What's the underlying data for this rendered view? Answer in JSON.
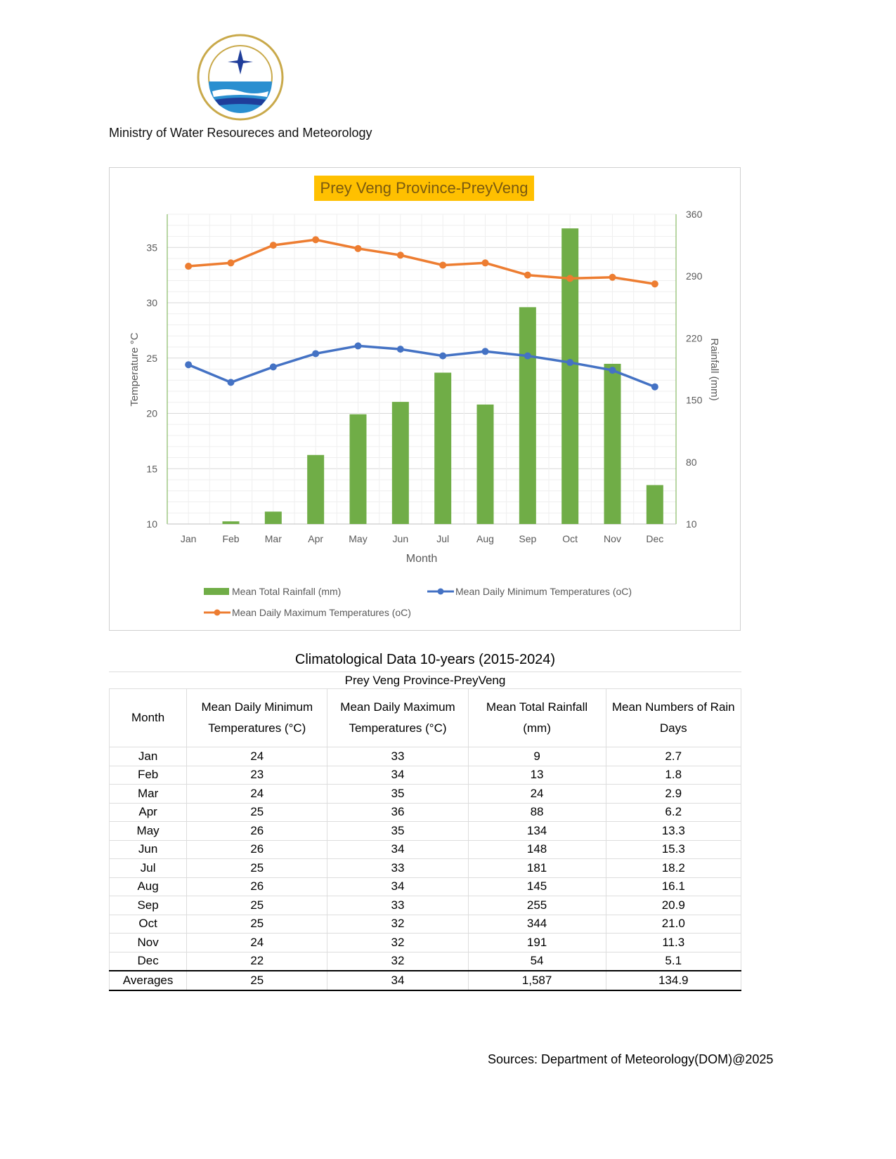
{
  "header": {
    "org": "Ministry of Water Resoureces and Meteorology"
  },
  "chart_data": {
    "type": "bar+line",
    "title": "Prey Veng Province-PreyVeng",
    "categories": [
      "Jan",
      "Feb",
      "Mar",
      "Apr",
      "May",
      "Jun",
      "Jul",
      "Aug",
      "Sep",
      "Oct",
      "Nov",
      "Dec"
    ],
    "xlabel": "Month",
    "ylabel": "Temperature °C",
    "y2label": "Rainfall (mm)",
    "ylim": [
      10,
      38
    ],
    "y2lim": [
      10,
      360
    ],
    "yticks": [
      "10",
      "15",
      "20",
      "25",
      "30",
      "35"
    ],
    "y2ticks": [
      "10",
      "80",
      "150",
      "220",
      "290",
      "360"
    ],
    "series": [
      {
        "name": "Mean Total Rainfall (mm)",
        "type": "bar",
        "axis": "right",
        "color": "#70ad47",
        "values": [
          9,
          13,
          24,
          88,
          134,
          148,
          181,
          145,
          255,
          344,
          191,
          54
        ]
      },
      {
        "name": "Mean Daily Minimum Temperatures (oC)",
        "type": "line",
        "axis": "left",
        "color": "#4472c4",
        "values": [
          24.4,
          22.8,
          24.2,
          25.4,
          26.1,
          25.8,
          25.2,
          25.6,
          25.2,
          24.6,
          23.9,
          22.4
        ]
      },
      {
        "name": "Mean Daily Maximum Temperatures (oC)",
        "type": "line",
        "axis": "left",
        "color": "#ed7d31",
        "values": [
          33.3,
          33.6,
          35.2,
          35.7,
          34.9,
          34.3,
          33.4,
          33.6,
          32.5,
          32.2,
          32.3,
          31.7
        ]
      }
    ],
    "legend": "bottom"
  },
  "table": {
    "title": "Climatological Data  10-years (2015-2024)",
    "subtitle": "Prey Veng Province-PreyVeng",
    "headers": [
      "Month",
      "Mean Daily Minimum Temperatures (°C)",
      "Mean Daily Maximum Temperatures (°C)",
      "Mean Total Rainfall (mm)",
      "Mean Numbers of Rain Days"
    ],
    "rows": [
      [
        "Jan",
        "24",
        "33",
        "9",
        "2.7"
      ],
      [
        "Feb",
        "23",
        "34",
        "13",
        "1.8"
      ],
      [
        "Mar",
        "24",
        "35",
        "24",
        "2.9"
      ],
      [
        "Apr",
        "25",
        "36",
        "88",
        "6.2"
      ],
      [
        "May",
        "26",
        "35",
        "134",
        "13.3"
      ],
      [
        "Jun",
        "26",
        "34",
        "148",
        "15.3"
      ],
      [
        "Jul",
        "25",
        "33",
        "181",
        "18.2"
      ],
      [
        "Aug",
        "26",
        "34",
        "145",
        "16.1"
      ],
      [
        "Sep",
        "25",
        "33",
        "255",
        "20.9"
      ],
      [
        "Oct",
        "25",
        "32",
        "344",
        "21.0"
      ],
      [
        "Nov",
        "24",
        "32",
        "191",
        "11.3"
      ],
      [
        "Dec",
        "22",
        "32",
        "54",
        "5.1"
      ]
    ],
    "averages": [
      "Averages",
      "25",
      "34",
      "1,587",
      "134.9"
    ]
  },
  "footer": {
    "sources": "Sources: Department of Meteorology(DOM)@2025"
  }
}
